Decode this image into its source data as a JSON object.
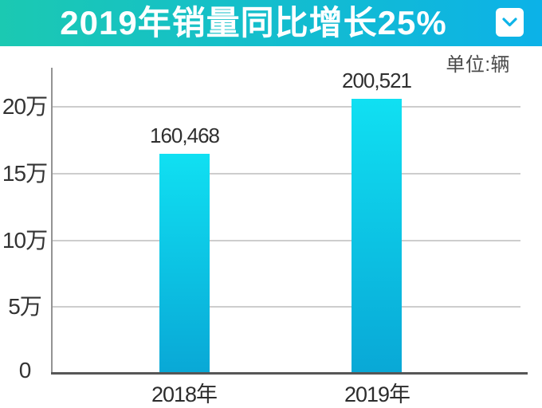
{
  "header": {
    "title": "2019年销量同比增长25%"
  },
  "chart_data": {
    "type": "bar",
    "title": "2019年销量同比增长25%",
    "unit": "单位:辆",
    "categories": [
      "2018年",
      "2019年"
    ],
    "values": [
      160468,
      200521
    ],
    "value_labels": [
      "160,468",
      "200,521"
    ],
    "y_tick_labels": [
      "20万",
      "15万",
      "10万",
      "5万",
      "0"
    ],
    "y_tick_values": [
      200000,
      150000,
      100000,
      50000,
      0
    ],
    "ylim": [
      0,
      230000
    ],
    "grid": true,
    "legend_position": "none",
    "colors": {
      "header_gradient_left": "#1bc9b2",
      "header_gradient_right": "#0cb2e8",
      "bar_top": "#10e0f2",
      "bar_bottom": "#09a8d6",
      "chevron": "#0db4e8",
      "grid_line": "#cdcdcd",
      "axis_line": "#565656",
      "label_text": "#2f2f2f"
    }
  }
}
